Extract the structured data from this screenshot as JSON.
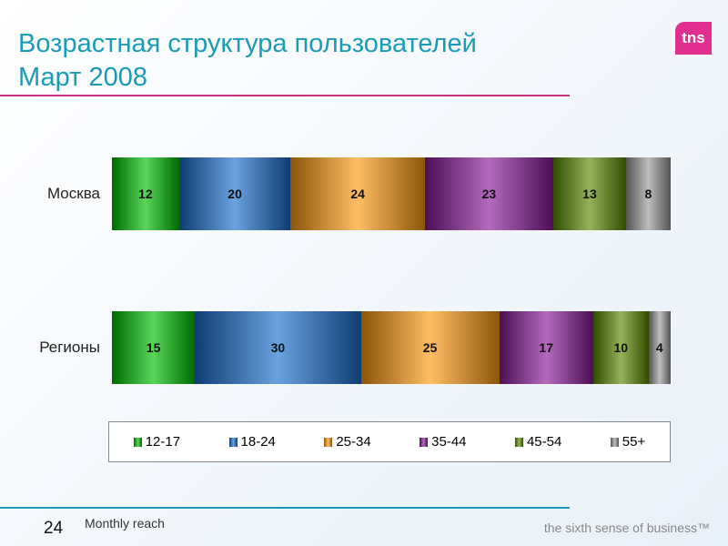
{
  "header": {
    "title_line1": "Возрастная структура пользователей",
    "title_line2": "Март 2008",
    "logo": "tns"
  },
  "footer": {
    "page": "24",
    "note": "Monthly reach",
    "tagline": "the sixth sense of business™"
  },
  "colors": [
    "#00c000",
    "#1a6fd0",
    "#ff9a10",
    "#8a1a9a",
    "#5a8a00",
    "#999999"
  ],
  "chart_data": {
    "type": "bar",
    "stacked": true,
    "orientation": "horizontal",
    "categories": [
      "Москва",
      "Регионы"
    ],
    "series": [
      {
        "name": "12-17",
        "values": [
          12,
          15
        ]
      },
      {
        "name": "18-24",
        "values": [
          20,
          30
        ]
      },
      {
        "name": "25-34",
        "values": [
          24,
          25
        ]
      },
      {
        "name": "35-44",
        "values": [
          23,
          17
        ]
      },
      {
        "name": "45-54",
        "values": [
          13,
          10
        ]
      },
      {
        "name": "55+",
        "values": [
          8,
          4
        ]
      }
    ],
    "legend": "bottom"
  }
}
